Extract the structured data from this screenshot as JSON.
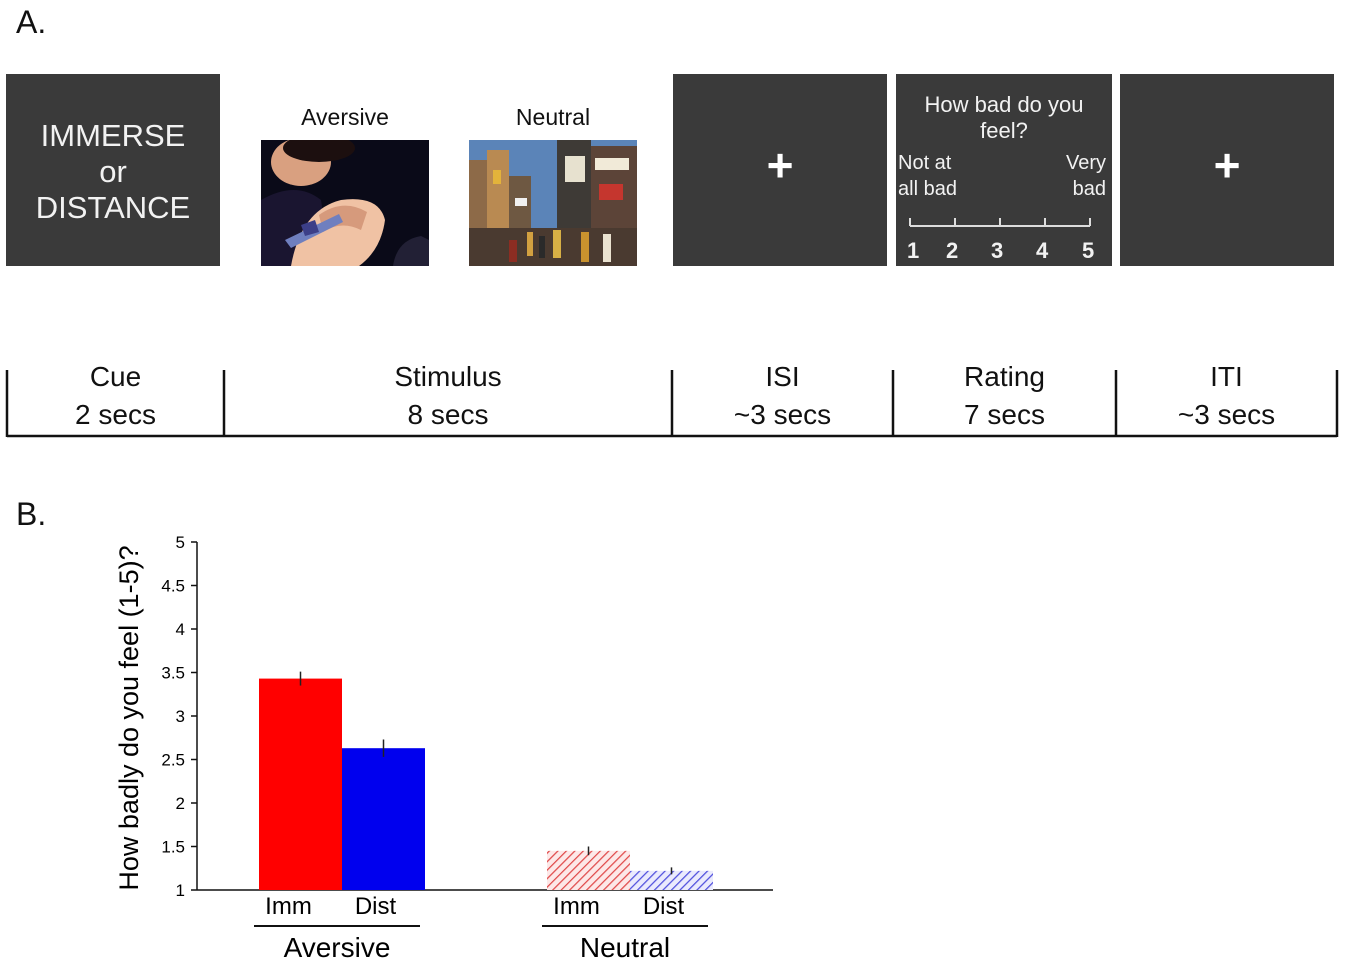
{
  "panel_a": {
    "label": "A.",
    "cue": {
      "line1": "IMMERSE",
      "line2": "or",
      "line3": "DISTANCE"
    },
    "stimuli": [
      {
        "title": "Aversive",
        "icon": "aversive-image"
      },
      {
        "title": "Neutral",
        "icon": "city-street-image"
      }
    ],
    "fixation_symbol": "+",
    "rating": {
      "question": "How bad do you feel?",
      "low_anchor_1": "Not at",
      "low_anchor_2": "all bad",
      "high_anchor_1": "Very",
      "high_anchor_2": "bad",
      "scale": [
        "1",
        "2",
        "3",
        "4",
        "5"
      ]
    },
    "timeline": [
      {
        "name": "Cue",
        "duration": "2 secs"
      },
      {
        "name": "Stimulus",
        "duration": "8 secs"
      },
      {
        "name": "ISI",
        "duration": "~3 secs"
      },
      {
        "name": "Rating",
        "duration": "7 secs"
      },
      {
        "name": "ITI",
        "duration": "~3 secs"
      }
    ]
  },
  "panel_b": {
    "label": "B."
  },
  "chart_data": {
    "type": "bar",
    "title": "",
    "ylabel": "How badly do you feel (1-5)?",
    "ylim": [
      1,
      5
    ],
    "yticks": [
      "1",
      "1.5",
      "2",
      "2.5",
      "3",
      "3.5",
      "4",
      "4.5",
      "5"
    ],
    "groups": [
      "Aversive",
      "Neutral"
    ],
    "categories": [
      "Imm",
      "Dist"
    ],
    "series": [
      {
        "group": "Aversive",
        "values": [
          3.43,
          2.63
        ],
        "errors": [
          0.08,
          0.1
        ],
        "colors": [
          "#ff0000",
          "#0000ee"
        ],
        "pattern": "solid"
      },
      {
        "group": "Neutral",
        "values": [
          1.45,
          1.22
        ],
        "errors": [
          0.05,
          0.04
        ],
        "colors": [
          "#e46060",
          "#6a6ae0"
        ],
        "pattern": "hatched"
      }
    ],
    "grid": false,
    "legend": "none"
  }
}
